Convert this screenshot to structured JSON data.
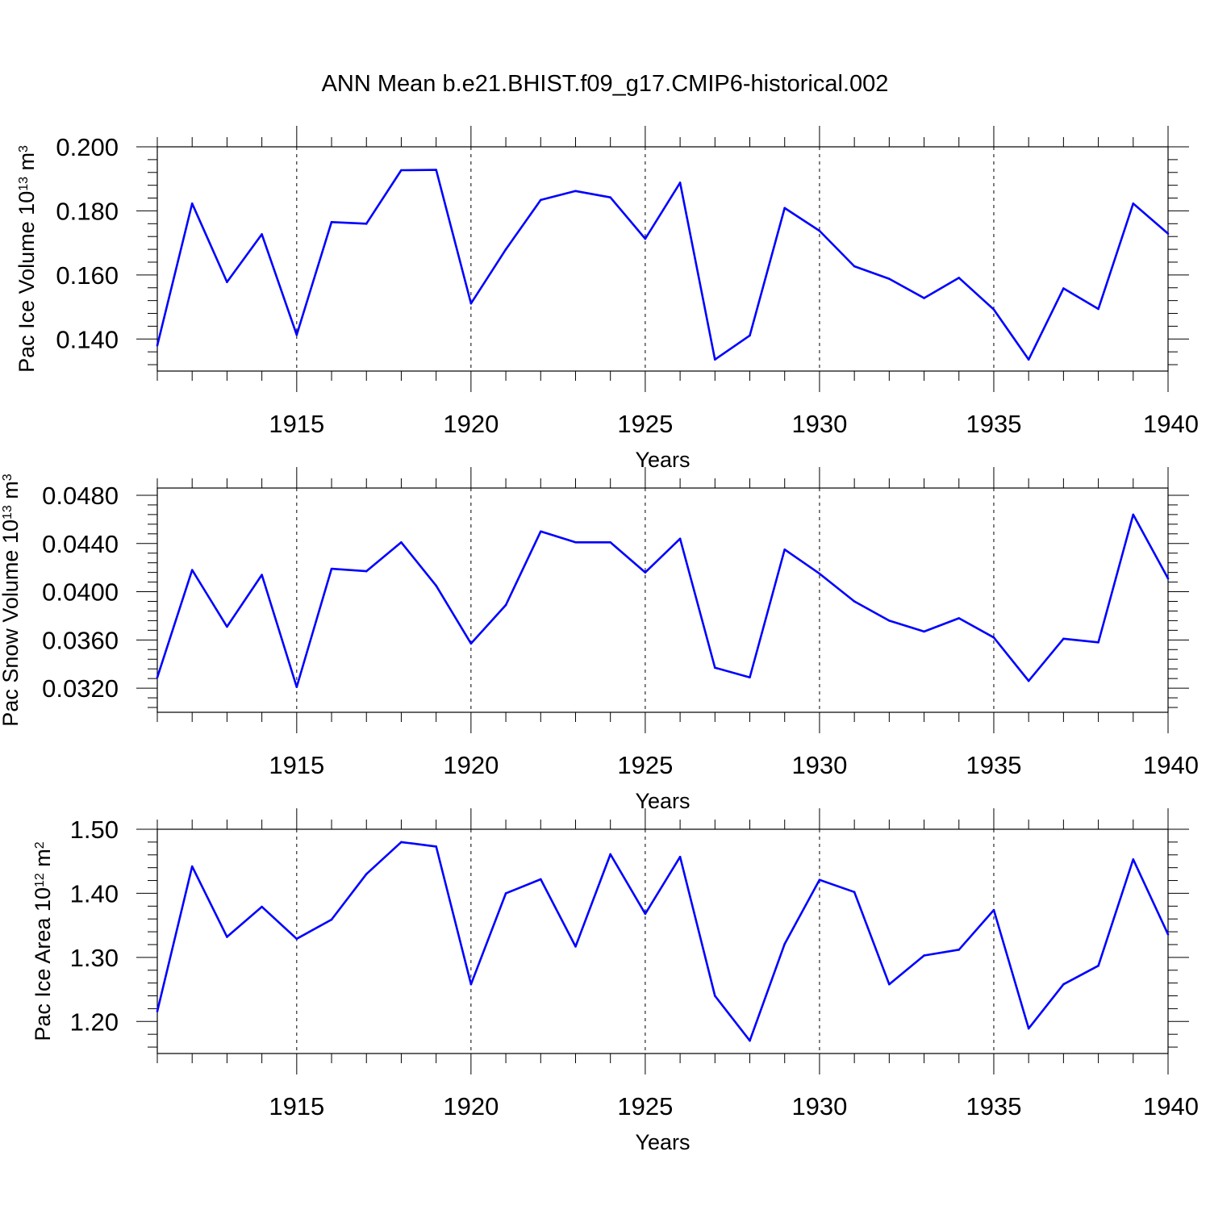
{
  "title": "ANN Mean b.e21.BHIST.f09_g17.CMIP6-historical.002",
  "chart_data": [
    {
      "type": "line",
      "title": "ANN Mean b.e21.BHIST.f09_g17.CMIP6-historical.002",
      "xlabel": "Years",
      "ylabel": "Pac Ice Volume 10",
      "ylabel_exp": "13",
      "ylabel_unit": "m",
      "ylabel_unit_exp": "3",
      "xlim": [
        1911,
        1940
      ],
      "ylim": [
        0.13,
        0.2
      ],
      "yticks": [
        0.14,
        0.16,
        0.18,
        0.2
      ],
      "ytick_labels": [
        "0.140",
        "0.160",
        "0.180",
        "0.200"
      ],
      "xticks": [
        1915,
        1920,
        1925,
        1930,
        1935,
        1940
      ],
      "xtick_labels": [
        "1915",
        "1920",
        "1925",
        "1930",
        "1935",
        "1940"
      ],
      "color": "#0000ff",
      "x": [
        1911,
        1912,
        1913,
        1914,
        1915,
        1916,
        1917,
        1918,
        1919,
        1920,
        1921,
        1922,
        1923,
        1924,
        1925,
        1926,
        1927,
        1928,
        1929,
        1930,
        1931,
        1932,
        1933,
        1934,
        1935,
        1936,
        1937,
        1938,
        1939,
        1940
      ],
      "values": [
        0.138,
        0.1823,
        0.1578,
        0.1727,
        0.1413,
        0.1765,
        0.176,
        0.1927,
        0.1928,
        0.1511,
        0.168,
        0.1834,
        0.1862,
        0.1842,
        0.1713,
        0.1888,
        0.1336,
        0.1411,
        0.1809,
        0.1738,
        0.1627,
        0.1588,
        0.1528,
        0.1591,
        0.1492,
        0.1336,
        0.1558,
        0.1494,
        0.1823,
        0.1729
      ]
    },
    {
      "type": "line",
      "xlabel": "Years",
      "ylabel": "Pac Snow Volume 10",
      "ylabel_exp": "13",
      "ylabel_unit": "m",
      "ylabel_unit_exp": "3",
      "xlim": [
        1911,
        1940
      ],
      "ylim": [
        0.03,
        0.0486
      ],
      "yticks": [
        0.032,
        0.036,
        0.04,
        0.044,
        0.048
      ],
      "ytick_labels": [
        "0.0320",
        "0.0360",
        "0.0400",
        "0.0440",
        "0.0480"
      ],
      "xticks": [
        1915,
        1920,
        1925,
        1930,
        1935,
        1940
      ],
      "xtick_labels": [
        "1915",
        "1920",
        "1925",
        "1930",
        "1935",
        "1940"
      ],
      "color": "#0000ff",
      "x": [
        1911,
        1912,
        1913,
        1914,
        1915,
        1916,
        1917,
        1918,
        1919,
        1920,
        1921,
        1922,
        1923,
        1924,
        1925,
        1926,
        1927,
        1928,
        1929,
        1930,
        1931,
        1932,
        1933,
        1934,
        1935,
        1936,
        1937,
        1938,
        1939,
        1940
      ],
      "values": [
        0.0329,
        0.0418,
        0.0371,
        0.0414,
        0.0321,
        0.0419,
        0.0417,
        0.0441,
        0.0405,
        0.0357,
        0.0389,
        0.045,
        0.0441,
        0.0441,
        0.0416,
        0.0444,
        0.0337,
        0.0329,
        0.0435,
        0.0415,
        0.0392,
        0.0376,
        0.0367,
        0.0378,
        0.0362,
        0.0326,
        0.0361,
        0.0358,
        0.0464,
        0.0411
      ]
    },
    {
      "type": "line",
      "xlabel": "Years",
      "ylabel": "Pac Ice Area 10",
      "ylabel_exp": "12",
      "ylabel_unit": "m",
      "ylabel_unit_exp": "2",
      "xlim": [
        1911,
        1940
      ],
      "ylim": [
        1.15,
        1.5
      ],
      "yticks": [
        1.2,
        1.3,
        1.4,
        1.5
      ],
      "ytick_labels": [
        "1.20",
        "1.30",
        "1.40",
        "1.50"
      ],
      "xticks": [
        1915,
        1920,
        1925,
        1930,
        1935,
        1940
      ],
      "xtick_labels": [
        "1915",
        "1920",
        "1925",
        "1930",
        "1935",
        "1940"
      ],
      "color": "#0000ff",
      "x": [
        1911,
        1912,
        1913,
        1914,
        1915,
        1916,
        1917,
        1918,
        1919,
        1920,
        1921,
        1922,
        1923,
        1924,
        1925,
        1926,
        1927,
        1928,
        1929,
        1930,
        1931,
        1932,
        1933,
        1934,
        1935,
        1936,
        1937,
        1938,
        1939,
        1940
      ],
      "values": [
        1.216,
        1.442,
        1.332,
        1.379,
        1.329,
        1.359,
        1.43,
        1.48,
        1.473,
        1.258,
        1.4,
        1.422,
        1.317,
        1.461,
        1.368,
        1.457,
        1.24,
        1.17,
        1.321,
        1.421,
        1.402,
        1.258,
        1.303,
        1.312,
        1.374,
        1.189,
        1.258,
        1.287,
        1.453,
        1.336
      ]
    }
  ]
}
